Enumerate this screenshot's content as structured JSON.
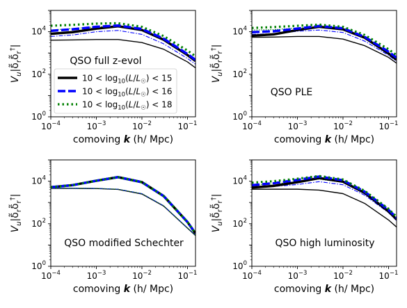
{
  "colors": {
    "black": "#000000",
    "blue": "#0000ff",
    "green": "#008000"
  },
  "chart_data": [
    {
      "type": "line",
      "title": "",
      "annotation": "QSO full z-evol",
      "xlabel": "comoving k (h/ Mpc)",
      "ylabel": "V_u|δ_r δ_r^†|",
      "xscale": "log",
      "yscale": "log",
      "xlim": [
        0.0001,
        0.15
      ],
      "ylim": [
        1,
        100000
      ],
      "legend": {
        "position": "center-left",
        "entries": [
          "10 < log10(L/L☉) < 15",
          "10 < log10(L/L☉) < 16",
          "10 < log10(L/L☉) < 18"
        ]
      },
      "x": [
        0.0001,
        0.0003,
        0.001,
        0.003,
        0.01,
        0.03,
        0.1,
        0.15
      ],
      "series": [
        {
          "name": "10 < log10(L/L☉) < 15",
          "style": "thick-solid",
          "color": "black",
          "values": [
            8000,
            9500,
            14000,
            18000,
            12000,
            4200,
            800,
            420
          ]
        },
        {
          "name": "10 < log10(L/L☉) < 16",
          "style": "thick-dashed",
          "color": "blue",
          "values": [
            11000,
            13000,
            17000,
            19500,
            13500,
            4700,
            900,
            470
          ]
        },
        {
          "name": "10 < log10(L/L☉) < 18",
          "style": "dotted",
          "color": "green",
          "values": [
            19000,
            21000,
            24000,
            25000,
            17000,
            6200,
            1300,
            700
          ]
        },
        {
          "name": "",
          "style": "thin-solid",
          "color": "black",
          "values": [
            4000,
            4100,
            4300,
            4300,
            3100,
            1500,
            380,
            200
          ]
        },
        {
          "name": "",
          "style": "thin-dashdot",
          "color": "blue",
          "values": [
            6000,
            7000,
            10000,
            11500,
            7500,
            2700,
            550,
            300
          ]
        },
        {
          "name": "",
          "style": "thin-dotted",
          "color": "green",
          "values": [
            12000,
            14000,
            17000,
            18000,
            11500,
            4000,
            850,
            450
          ]
        }
      ]
    },
    {
      "type": "line",
      "title": "",
      "annotation": "QSO PLE",
      "xlabel": "comoving k (h/ Mpc)",
      "ylabel": "V_u|δ_r δ_r^†|",
      "xscale": "log",
      "yscale": "log",
      "xlim": [
        0.0001,
        0.15
      ],
      "ylim": [
        1,
        100000
      ],
      "x": [
        0.0001,
        0.0003,
        0.001,
        0.003,
        0.01,
        0.03,
        0.1,
        0.15
      ],
      "series": [
        {
          "name": "",
          "style": "thick-solid",
          "color": "black",
          "values": [
            6500,
            7500,
            12000,
            17000,
            13000,
            5200,
            950,
            480
          ]
        },
        {
          "name": "",
          "style": "thick-dashed",
          "color": "blue",
          "values": [
            9500,
            10500,
            14000,
            18500,
            14500,
            5700,
            1150,
            600
          ]
        },
        {
          "name": "",
          "style": "dotted",
          "color": "green",
          "values": [
            15000,
            16500,
            19000,
            21500,
            17000,
            7000,
            1500,
            780
          ]
        },
        {
          "name": "",
          "style": "thin-solid",
          "color": "black",
          "values": [
            5500,
            5600,
            6000,
            6000,
            4500,
            2200,
            620,
            330
          ]
        },
        {
          "name": "",
          "style": "thin-dashdot",
          "color": "blue",
          "values": [
            7500,
            8000,
            10500,
            12000,
            9200,
            3600,
            780,
            400
          ]
        },
        {
          "name": "",
          "style": "thin-dotted",
          "color": "green",
          "values": [
            12000,
            12500,
            15000,
            16500,
            12500,
            4800,
            1000,
            520
          ]
        }
      ]
    },
    {
      "type": "line",
      "title": "",
      "annotation": "QSO modified Schechter",
      "xlabel": "comoving k (h/ Mpc)",
      "ylabel": "V_u|δ_r δ_r^†|",
      "xscale": "log",
      "yscale": "log",
      "xlim": [
        0.0001,
        0.15
      ],
      "ylim": [
        1,
        100000
      ],
      "x": [
        0.0001,
        0.0003,
        0.001,
        0.003,
        0.01,
        0.03,
        0.1,
        0.15
      ],
      "series": [
        {
          "name": "",
          "style": "thick-solid",
          "color": "black",
          "values": [
            5200,
            6500,
            10500,
            15500,
            9000,
            2000,
            120,
            35
          ]
        },
        {
          "name": "",
          "style": "thick-dashed",
          "color": "blue",
          "values": [
            5200,
            6500,
            10500,
            15500,
            9000,
            2000,
            120,
            35
          ]
        },
        {
          "name": "",
          "style": "dotted",
          "color": "green",
          "values": [
            5200,
            6500,
            10500,
            15500,
            9000,
            2000,
            120,
            35
          ]
        },
        {
          "name": "",
          "style": "thin-solid",
          "color": "black",
          "values": [
            4600,
            4600,
            4500,
            4100,
            2500,
            680,
            62,
            28
          ]
        },
        {
          "name": "",
          "style": "thin-dashdot",
          "color": "blue",
          "values": [
            4700,
            4700,
            4600,
            4200,
            2600,
            700,
            64,
            29
          ]
        },
        {
          "name": "",
          "style": "thin-dotted",
          "color": "green",
          "values": [
            4700,
            4700,
            4600,
            4200,
            2600,
            700,
            64,
            29
          ]
        }
      ]
    },
    {
      "type": "line",
      "title": "",
      "annotation": "QSO high luminosity",
      "xlabel": "comoving k (h/ Mpc)",
      "ylabel": "V_u|δ_r δ_r^†|",
      "xscale": "log",
      "yscale": "log",
      "xlim": [
        0.0001,
        0.15
      ],
      "ylim": [
        1,
        100000
      ],
      "x": [
        0.0001,
        0.0003,
        0.001,
        0.003,
        0.01,
        0.03,
        0.1,
        0.15
      ],
      "series": [
        {
          "name": "",
          "style": "thick-solid",
          "color": "black",
          "values": [
            5000,
            6000,
            9000,
            14000,
            9500,
            2800,
            380,
            160
          ]
        },
        {
          "name": "",
          "style": "thick-dashed",
          "color": "blue",
          "values": [
            6500,
            8000,
            11500,
            16500,
            11000,
            3200,
            450,
            190
          ]
        },
        {
          "name": "",
          "style": "dotted",
          "color": "green",
          "values": [
            8500,
            10000,
            13000,
            17500,
            12000,
            3500,
            500,
            210
          ]
        },
        {
          "name": "",
          "style": "thin-solid",
          "color": "black",
          "values": [
            4200,
            4200,
            4200,
            3800,
            2600,
            900,
            150,
            70
          ]
        },
        {
          "name": "",
          "style": "thin-dashdot",
          "color": "blue",
          "values": [
            5200,
            5600,
            7000,
            9500,
            6800,
            2200,
            330,
            140
          ]
        },
        {
          "name": "",
          "style": "thin-dotted",
          "color": "green",
          "values": [
            6500,
            7500,
            9500,
            12500,
            8800,
            2600,
            400,
            170
          ]
        }
      ]
    }
  ]
}
